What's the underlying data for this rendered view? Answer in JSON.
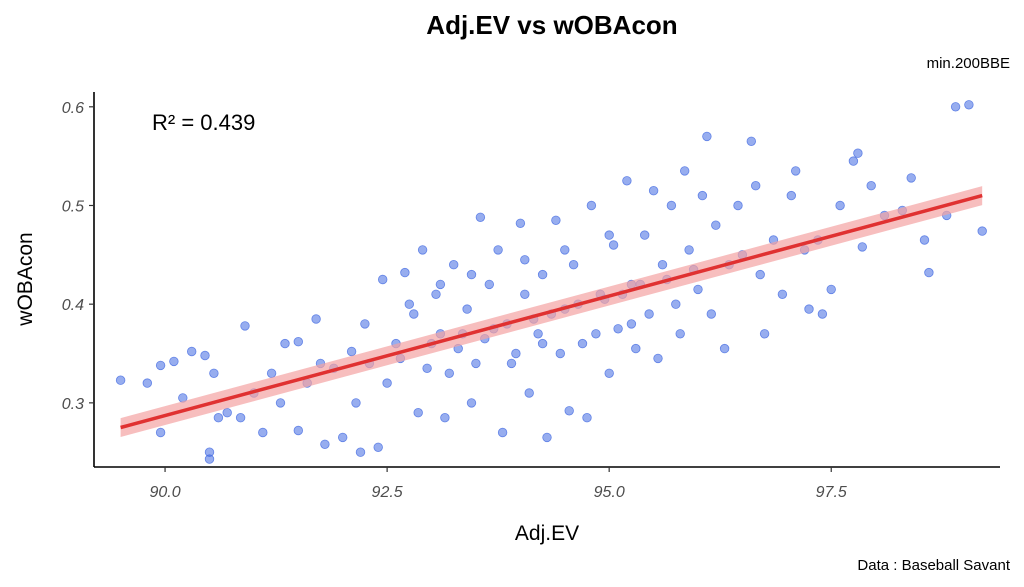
{
  "chart_data": {
    "type": "scatter",
    "title": "Adj.EV vs wOBAcon",
    "subtitle": "min.200BBE",
    "caption": "Data : Baseball Savant",
    "xlabel": "Adj.EV",
    "ylabel": "wOBAcon",
    "xlim": [
      89.2,
      99.4
    ],
    "ylim": [
      0.235,
      0.615
    ],
    "x_ticks": [
      90.0,
      92.5,
      95.0,
      97.5
    ],
    "x_tick_labels": [
      "90.0",
      "92.5",
      "95.0",
      "97.5"
    ],
    "y_ticks": [
      0.3,
      0.4,
      0.5,
      0.6
    ],
    "y_tick_labels": [
      "0.3",
      "0.4",
      "0.5",
      "0.6"
    ],
    "grid": false,
    "point_color": "#4169e1",
    "fit_line_color": "#e03131",
    "fit_band_color": "#f4a3a3",
    "annotation": "R² = 0.439",
    "fit": {
      "x_start": 89.5,
      "y_start": 0.275,
      "x_end": 99.2,
      "y_end": 0.51,
      "band_halfwidth": 0.006
    },
    "points": [
      {
        "x": 89.5,
        "y": 0.323
      },
      {
        "x": 89.8,
        "y": 0.32
      },
      {
        "x": 89.95,
        "y": 0.338
      },
      {
        "x": 90.1,
        "y": 0.342
      },
      {
        "x": 89.95,
        "y": 0.27
      },
      {
        "x": 90.2,
        "y": 0.305
      },
      {
        "x": 90.3,
        "y": 0.352
      },
      {
        "x": 90.45,
        "y": 0.348
      },
      {
        "x": 90.5,
        "y": 0.243
      },
      {
        "x": 90.5,
        "y": 0.25
      },
      {
        "x": 90.6,
        "y": 0.285
      },
      {
        "x": 90.55,
        "y": 0.33
      },
      {
        "x": 90.7,
        "y": 0.29
      },
      {
        "x": 90.85,
        "y": 0.285
      },
      {
        "x": 90.9,
        "y": 0.378
      },
      {
        "x": 91.0,
        "y": 0.31
      },
      {
        "x": 91.1,
        "y": 0.27
      },
      {
        "x": 91.2,
        "y": 0.33
      },
      {
        "x": 91.3,
        "y": 0.3
      },
      {
        "x": 91.35,
        "y": 0.36
      },
      {
        "x": 91.5,
        "y": 0.362
      },
      {
        "x": 91.5,
        "y": 0.272
      },
      {
        "x": 91.6,
        "y": 0.32
      },
      {
        "x": 91.7,
        "y": 0.385
      },
      {
        "x": 91.75,
        "y": 0.34
      },
      {
        "x": 91.8,
        "y": 0.258
      },
      {
        "x": 92.0,
        "y": 0.265
      },
      {
        "x": 92.1,
        "y": 0.352
      },
      {
        "x": 92.15,
        "y": 0.3
      },
      {
        "x": 92.2,
        "y": 0.25
      },
      {
        "x": 92.25,
        "y": 0.38
      },
      {
        "x": 92.4,
        "y": 0.255
      },
      {
        "x": 92.45,
        "y": 0.425
      },
      {
        "x": 92.5,
        "y": 0.32
      },
      {
        "x": 92.6,
        "y": 0.36
      },
      {
        "x": 92.7,
        "y": 0.432
      },
      {
        "x": 92.8,
        "y": 0.39
      },
      {
        "x": 92.85,
        "y": 0.29
      },
      {
        "x": 92.9,
        "y": 0.455
      },
      {
        "x": 92.95,
        "y": 0.335
      },
      {
        "x": 93.05,
        "y": 0.41
      },
      {
        "x": 93.1,
        "y": 0.37
      },
      {
        "x": 93.15,
        "y": 0.285
      },
      {
        "x": 93.25,
        "y": 0.44
      },
      {
        "x": 93.3,
        "y": 0.355
      },
      {
        "x": 93.4,
        "y": 0.395
      },
      {
        "x": 93.45,
        "y": 0.3
      },
      {
        "x": 93.55,
        "y": 0.488
      },
      {
        "x": 93.6,
        "y": 0.365
      },
      {
        "x": 93.65,
        "y": 0.42
      },
      {
        "x": 93.75,
        "y": 0.455
      },
      {
        "x": 93.8,
        "y": 0.27
      },
      {
        "x": 93.85,
        "y": 0.38
      },
      {
        "x": 93.9,
        "y": 0.34
      },
      {
        "x": 94.0,
        "y": 0.482
      },
      {
        "x": 94.05,
        "y": 0.41
      },
      {
        "x": 94.1,
        "y": 0.31
      },
      {
        "x": 94.2,
        "y": 0.37
      },
      {
        "x": 94.25,
        "y": 0.43
      },
      {
        "x": 94.3,
        "y": 0.265
      },
      {
        "x": 94.4,
        "y": 0.485
      },
      {
        "x": 94.45,
        "y": 0.35
      },
      {
        "x": 94.5,
        "y": 0.395
      },
      {
        "x": 94.55,
        "y": 0.292
      },
      {
        "x": 94.6,
        "y": 0.44
      },
      {
        "x": 94.7,
        "y": 0.36
      },
      {
        "x": 94.75,
        "y": 0.285
      },
      {
        "x": 94.8,
        "y": 0.5
      },
      {
        "x": 94.9,
        "y": 0.41
      },
      {
        "x": 95.0,
        "y": 0.33
      },
      {
        "x": 95.05,
        "y": 0.46
      },
      {
        "x": 95.1,
        "y": 0.375
      },
      {
        "x": 95.2,
        "y": 0.525
      },
      {
        "x": 95.25,
        "y": 0.42
      },
      {
        "x": 95.3,
        "y": 0.355
      },
      {
        "x": 95.4,
        "y": 0.47
      },
      {
        "x": 95.45,
        "y": 0.39
      },
      {
        "x": 95.5,
        "y": 0.515
      },
      {
        "x": 95.55,
        "y": 0.345
      },
      {
        "x": 95.6,
        "y": 0.44
      },
      {
        "x": 95.7,
        "y": 0.5
      },
      {
        "x": 95.75,
        "y": 0.4
      },
      {
        "x": 95.8,
        "y": 0.37
      },
      {
        "x": 95.85,
        "y": 0.535
      },
      {
        "x": 95.9,
        "y": 0.455
      },
      {
        "x": 96.0,
        "y": 0.415
      },
      {
        "x": 96.05,
        "y": 0.51
      },
      {
        "x": 96.1,
        "y": 0.57
      },
      {
        "x": 96.15,
        "y": 0.39
      },
      {
        "x": 96.2,
        "y": 0.48
      },
      {
        "x": 96.3,
        "y": 0.355
      },
      {
        "x": 96.35,
        "y": 0.44
      },
      {
        "x": 96.45,
        "y": 0.5
      },
      {
        "x": 96.5,
        "y": 0.45
      },
      {
        "x": 96.6,
        "y": 0.565
      },
      {
        "x": 96.65,
        "y": 0.52
      },
      {
        "x": 96.7,
        "y": 0.43
      },
      {
        "x": 96.75,
        "y": 0.37
      },
      {
        "x": 96.85,
        "y": 0.465
      },
      {
        "x": 96.95,
        "y": 0.41
      },
      {
        "x": 97.05,
        "y": 0.51
      },
      {
        "x": 97.1,
        "y": 0.535
      },
      {
        "x": 97.2,
        "y": 0.455
      },
      {
        "x": 97.25,
        "y": 0.395
      },
      {
        "x": 97.35,
        "y": 0.465
      },
      {
        "x": 97.4,
        "y": 0.39
      },
      {
        "x": 97.5,
        "y": 0.415
      },
      {
        "x": 97.6,
        "y": 0.5
      },
      {
        "x": 97.75,
        "y": 0.545
      },
      {
        "x": 97.8,
        "y": 0.553
      },
      {
        "x": 97.85,
        "y": 0.458
      },
      {
        "x": 97.95,
        "y": 0.52
      },
      {
        "x": 98.1,
        "y": 0.49
      },
      {
        "x": 98.3,
        "y": 0.495
      },
      {
        "x": 98.4,
        "y": 0.528
      },
      {
        "x": 98.55,
        "y": 0.465
      },
      {
        "x": 98.6,
        "y": 0.432
      },
      {
        "x": 98.8,
        "y": 0.49
      },
      {
        "x": 98.9,
        "y": 0.6
      },
      {
        "x": 99.05,
        "y": 0.602
      },
      {
        "x": 99.2,
        "y": 0.474
      },
      {
        "x": 91.9,
        "y": 0.335
      },
      {
        "x": 92.3,
        "y": 0.34
      },
      {
        "x": 92.65,
        "y": 0.345
      },
      {
        "x": 93.0,
        "y": 0.36
      },
      {
        "x": 93.35,
        "y": 0.37
      },
      {
        "x": 93.7,
        "y": 0.375
      },
      {
        "x": 94.15,
        "y": 0.385
      },
      {
        "x": 94.35,
        "y": 0.39
      },
      {
        "x": 94.65,
        "y": 0.4
      },
      {
        "x": 94.95,
        "y": 0.405
      },
      {
        "x": 95.15,
        "y": 0.41
      },
      {
        "x": 95.35,
        "y": 0.42
      },
      {
        "x": 95.65,
        "y": 0.425
      },
      {
        "x": 95.95,
        "y": 0.435
      },
      {
        "x": 93.2,
        "y": 0.33
      },
      {
        "x": 93.5,
        "y": 0.34
      },
      {
        "x": 93.95,
        "y": 0.35
      },
      {
        "x": 94.25,
        "y": 0.36
      },
      {
        "x": 94.85,
        "y": 0.37
      },
      {
        "x": 95.25,
        "y": 0.38
      },
      {
        "x": 92.75,
        "y": 0.4
      },
      {
        "x": 93.1,
        "y": 0.42
      },
      {
        "x": 93.45,
        "y": 0.43
      },
      {
        "x": 94.05,
        "y": 0.445
      },
      {
        "x": 94.5,
        "y": 0.455
      },
      {
        "x": 95.0,
        "y": 0.47
      }
    ]
  }
}
